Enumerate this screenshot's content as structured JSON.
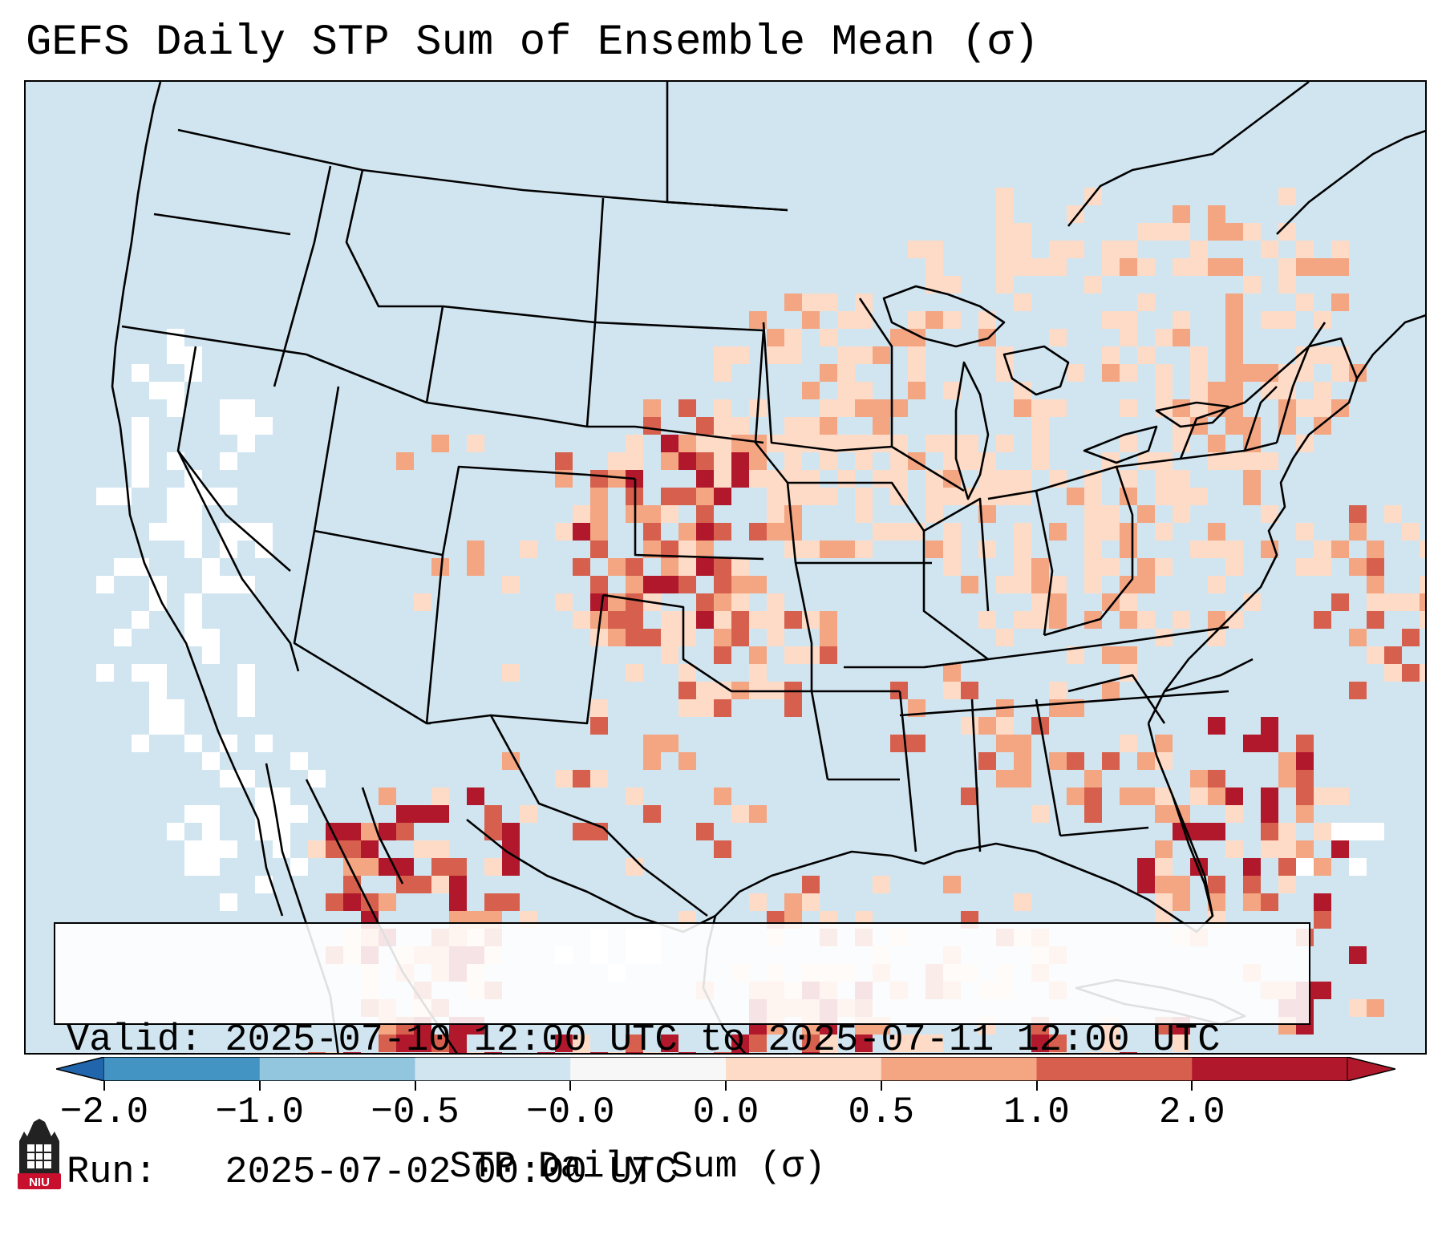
{
  "title": "GEFS Daily STP Sum of Ensemble Mean (σ)",
  "info": {
    "valid_line": "Valid: 2025-07-10 12:00 UTC to 2025-07-11 12:00 UTC",
    "run_line": "Run:   2025-07-02 00:00 UTC"
  },
  "colorbar": {
    "label": "STP Daily Sum (σ)",
    "ticks": [
      "−2.0",
      "−1.0",
      "−0.5",
      "−0.0",
      "0.0",
      "0.5",
      "1.0",
      "2.0"
    ],
    "colors": [
      "#4393c3",
      "#92c5de",
      "#d1e5f0",
      "#f7f7f7",
      "#fddbc7",
      "#f4a582",
      "#d6604d",
      "#b2182b"
    ],
    "under_color": "#2166ac",
    "over_color": "#b2182b"
  },
  "map": {
    "ocean_color": "#d1e5f0",
    "land_color": "#d1e5f0",
    "neutral_color": "#ffffff",
    "border_color": "#000000"
  },
  "logo": {
    "text": "NIU",
    "color": "#c8102e"
  }
}
